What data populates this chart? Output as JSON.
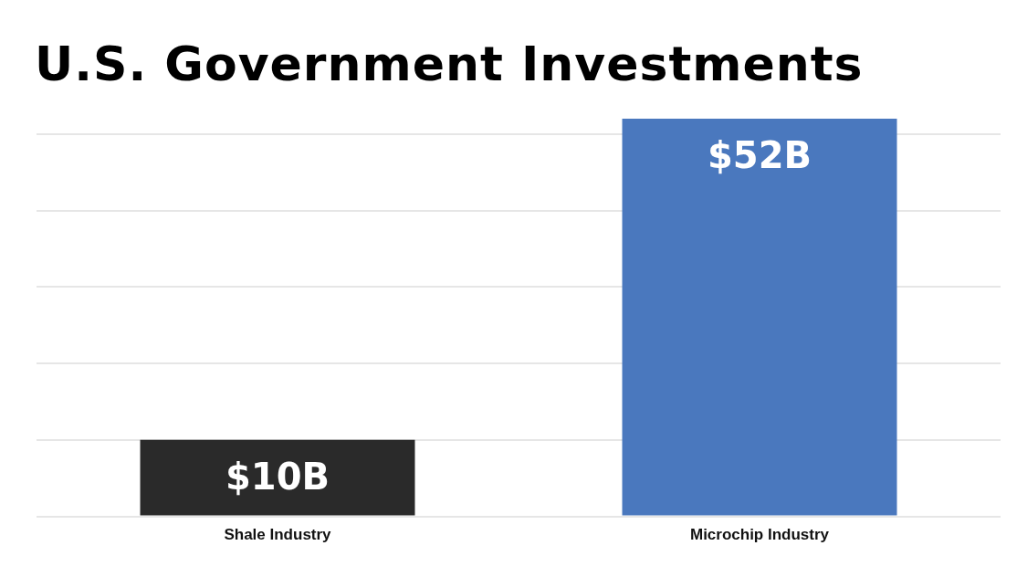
{
  "chart_data": {
    "type": "bar",
    "title": "U.S. Government Investments",
    "categories": [
      "Shale Industry",
      "Microchip Industry"
    ],
    "values": [
      10,
      52
    ],
    "colors": [
      "#2a2a2a",
      "#4a78be"
    ],
    "value_labels": [
      "$10B",
      "$52B"
    ],
    "ylim": [
      0,
      52
    ],
    "yticks": [
      {
        "value": 0,
        "label": null
      },
      {
        "value": 10,
        "label": null
      },
      {
        "value": 20,
        "label": null
      },
      {
        "value": 30,
        "label": null
      },
      {
        "value": 40,
        "label": null
      },
      {
        "value": 50,
        "label": null
      }
    ],
    "grid": "y",
    "tick_labels": "x",
    "legend": false
  }
}
